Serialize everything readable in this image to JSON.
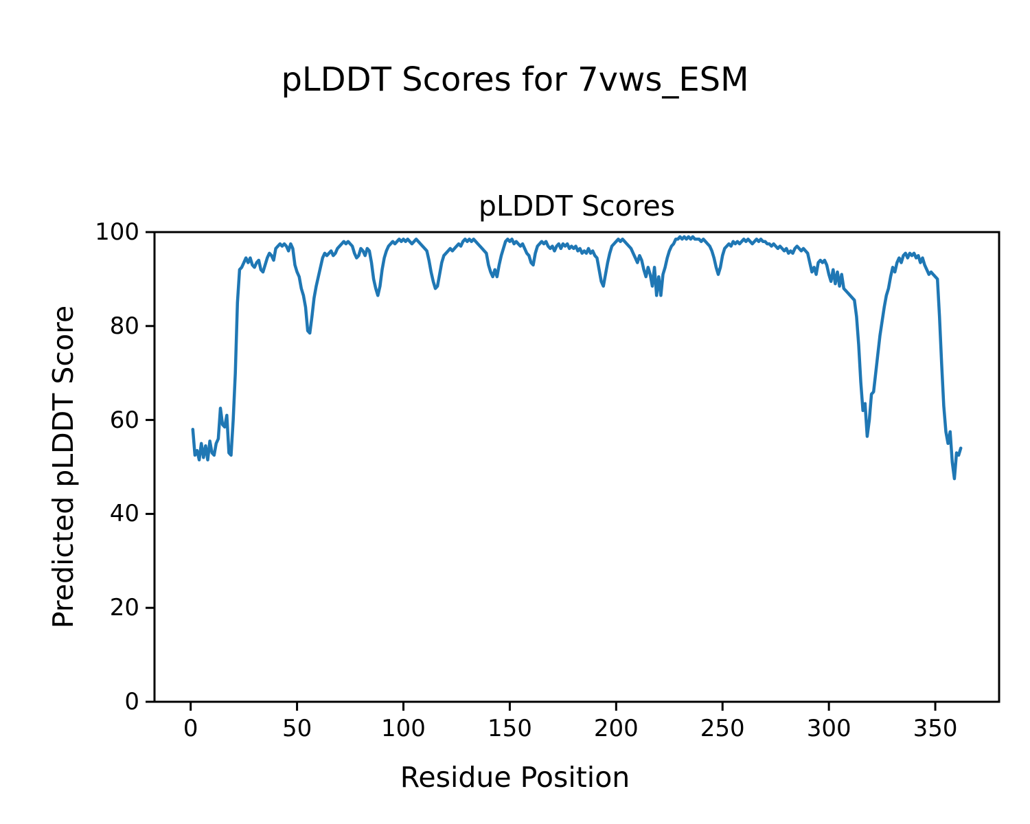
{
  "chart_data": {
    "type": "line",
    "figure_title": "pLDDT Scores for 7vws_ESM",
    "title": "pLDDT Scores",
    "xlabel": "Residue Position",
    "ylabel": "Predicted pLDDT Score",
    "xlim": [
      -17,
      380
    ],
    "ylim": [
      0,
      100
    ],
    "xticks": [
      0,
      50,
      100,
      150,
      200,
      250,
      300,
      350
    ],
    "yticks": [
      0,
      20,
      40,
      60,
      80,
      100
    ],
    "line_color": "#1f77b4",
    "line_width": 4.5,
    "grid": false,
    "legend": "none",
    "series": [
      {
        "name": "pLDDT",
        "x_start": 1,
        "values": [
          58,
          52.5,
          53.5,
          51.5,
          55,
          52,
          54.5,
          51.5,
          55.5,
          53,
          52.5,
          55,
          56,
          62.5,
          59,
          58.5,
          61,
          53,
          52.5,
          60,
          70,
          85,
          92,
          92.5,
          93.5,
          94.5,
          93.5,
          94.5,
          93,
          92.5,
          93.5,
          94,
          92,
          91.5,
          93,
          94.5,
          95.5,
          95,
          94,
          96.5,
          97,
          97.5,
          97,
          97.5,
          97,
          96,
          97.5,
          96.5,
          93,
          91.5,
          90.5,
          88,
          86.5,
          84,
          79,
          78.5,
          82,
          86,
          88.5,
          90.5,
          92.5,
          94.5,
          95.5,
          95,
          95.5,
          96,
          95,
          95.5,
          96.5,
          97,
          97.5,
          98,
          97.5,
          98,
          97.5,
          97,
          95.5,
          94.5,
          95,
          96.5,
          96,
          95,
          96.5,
          96,
          93.5,
          90,
          88,
          86.5,
          88.5,
          92,
          94.5,
          96,
          97,
          97.5,
          98,
          97.5,
          98,
          98.5,
          98,
          98.5,
          98,
          98.5,
          98,
          97.5,
          98,
          98.5,
          98,
          97.5,
          97,
          96.5,
          96,
          94,
          91.5,
          89.5,
          88,
          88.5,
          91,
          93.5,
          95,
          95.5,
          96,
          96.5,
          96,
          96.5,
          97,
          97.5,
          97,
          98,
          98.5,
          98,
          98.5,
          98,
          98.5,
          98,
          97.5,
          97,
          96.5,
          96,
          95.5,
          93,
          91.5,
          90.5,
          92,
          90.5,
          93,
          95,
          96.5,
          98,
          98.5,
          98,
          98.5,
          97.5,
          98,
          97.5,
          97,
          97.5,
          96.5,
          95.5,
          95,
          93.5,
          93,
          95.5,
          97,
          97.5,
          98,
          97.5,
          98,
          97,
          96.5,
          97,
          96,
          97,
          97.5,
          96.5,
          97.5,
          97,
          97.5,
          96.5,
          97,
          96.5,
          97,
          96,
          96.5,
          95.5,
          96,
          95.5,
          96.5,
          95.5,
          96,
          95,
          94.5,
          92,
          89.5,
          88.5,
          91,
          93.5,
          95.5,
          97,
          97.5,
          98,
          98.5,
          98,
          98.5,
          98,
          97.5,
          97,
          96.5,
          95.5,
          94.5,
          93.5,
          95,
          94,
          92,
          90.5,
          92.5,
          91,
          88.5,
          92.5,
          86.5,
          90.5,
          86.5,
          91,
          92.5,
          94.5,
          96,
          97,
          97.5,
          98.5,
          98.5,
          99,
          98.5,
          99,
          98.5,
          99,
          98.5,
          99,
          98.5,
          98.5,
          98.5,
          98,
          98.5,
          98,
          97.5,
          97,
          96,
          94.5,
          92.5,
          91,
          92.5,
          95,
          96.5,
          97,
          97.5,
          97,
          98,
          97.5,
          98,
          97.5,
          98,
          98.5,
          98,
          98.5,
          98,
          97.5,
          98,
          98.5,
          98,
          98.5,
          98,
          98,
          97.5,
          97.5,
          97,
          97.5,
          97,
          96.5,
          97,
          96.5,
          96,
          96.5,
          95.5,
          96,
          95.5,
          96.5,
          97,
          96.5,
          96,
          96.5,
          96,
          95.5,
          93.5,
          91.5,
          92.5,
          91,
          93.5,
          94,
          93.5,
          94,
          93,
          91,
          89.5,
          92,
          89,
          91.5,
          88.5,
          91,
          88,
          87.5,
          87,
          86.5,
          86,
          85.5,
          82,
          76,
          68,
          62,
          63.5,
          56.5,
          60,
          65.5,
          66,
          70,
          74,
          78,
          81,
          84,
          86.5,
          88,
          90.5,
          92.5,
          91.5,
          93.5,
          94.5,
          93.5,
          95,
          95.5,
          94.5,
          95.5,
          95,
          95.5,
          94.5,
          95,
          93.5,
          94.5,
          93,
          92,
          91,
          91.5,
          91,
          90.5,
          90,
          82,
          72,
          63,
          57.5,
          55,
          57.5,
          51,
          47.5,
          53,
          52.5,
          54
        ]
      }
    ]
  }
}
